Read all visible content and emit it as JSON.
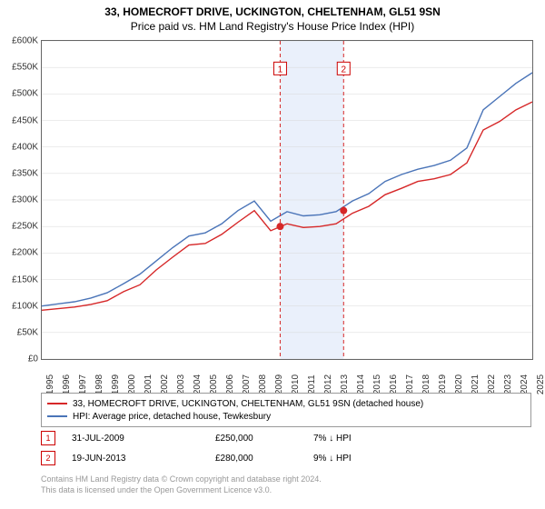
{
  "title": "33, HOMECROFT DRIVE, UCKINGTON, CHELTENHAM, GL51 9SN",
  "subtitle": "Price paid vs. HM Land Registry's House Price Index (HPI)",
  "chart": {
    "type": "line",
    "background_color": "#ffffff",
    "grid_color": "#d8d8d8",
    "ylim": [
      0,
      600000
    ],
    "ytick_step": 50000,
    "ytick_labels": [
      "£0",
      "£50K",
      "£100K",
      "£150K",
      "£200K",
      "£250K",
      "£300K",
      "£350K",
      "£400K",
      "£450K",
      "£500K",
      "£550K",
      "£600K"
    ],
    "x_years": [
      1995,
      1996,
      1997,
      1998,
      1999,
      2000,
      2001,
      2002,
      2003,
      2004,
      2005,
      2006,
      2007,
      2008,
      2009,
      2010,
      2011,
      2012,
      2013,
      2014,
      2015,
      2016,
      2017,
      2018,
      2019,
      2020,
      2021,
      2022,
      2023,
      2024,
      2025
    ],
    "series": [
      {
        "name": "33, HOMECROFT DRIVE, UCKINGTON, CHELTENHAM, GL51 9SN (detached house)",
        "color": "#d62728",
        "line_width": 1.4,
        "values": [
          92,
          95,
          98,
          103,
          110,
          127,
          140,
          168,
          192,
          215,
          218,
          235,
          258,
          280,
          242,
          255,
          248,
          250,
          255,
          275,
          288,
          310,
          322,
          335,
          340,
          348,
          370,
          432,
          448,
          470,
          485
        ]
      },
      {
        "name": "HPI: Average price, detached house, Tewkesbury",
        "color": "#4a74b8",
        "line_width": 1.4,
        "values": [
          100,
          104,
          108,
          115,
          125,
          142,
          160,
          185,
          210,
          232,
          238,
          255,
          280,
          298,
          260,
          278,
          270,
          272,
          278,
          298,
          312,
          335,
          348,
          358,
          365,
          375,
          398,
          470,
          495,
          520,
          540
        ]
      }
    ],
    "shaded_band": {
      "x_start_year": 2009.58,
      "x_end_year": 2013.46,
      "color": "#eaf0fb"
    },
    "vlines": [
      {
        "year": 2009.58,
        "color": "#d62728",
        "dash": "4,3"
      },
      {
        "year": 2013.46,
        "color": "#d62728",
        "dash": "4,3"
      }
    ],
    "markers_on_chart": [
      {
        "label": "1",
        "year": 2009.58,
        "y_value": 250000,
        "box_y": 560000
      },
      {
        "label": "2",
        "year": 2013.46,
        "y_value": 280000,
        "box_y": 560000
      }
    ]
  },
  "legend": {
    "items": [
      {
        "color": "#d62728",
        "label": "33, HOMECROFT DRIVE, UCKINGTON, CHELTENHAM, GL51 9SN (detached house)"
      },
      {
        "color": "#4a74b8",
        "label": "HPI: Average price, detached house, Tewkesbury"
      }
    ]
  },
  "transactions": [
    {
      "marker": "1",
      "date": "31-JUL-2009",
      "price": "£250,000",
      "pct": "7% ↓ HPI"
    },
    {
      "marker": "2",
      "date": "19-JUN-2013",
      "price": "£280,000",
      "pct": "9% ↓ HPI"
    }
  ],
  "footer": {
    "line1": "Contains HM Land Registry data © Crown copyright and database right 2024.",
    "line2": "This data is licensed under the Open Government Licence v3.0."
  }
}
